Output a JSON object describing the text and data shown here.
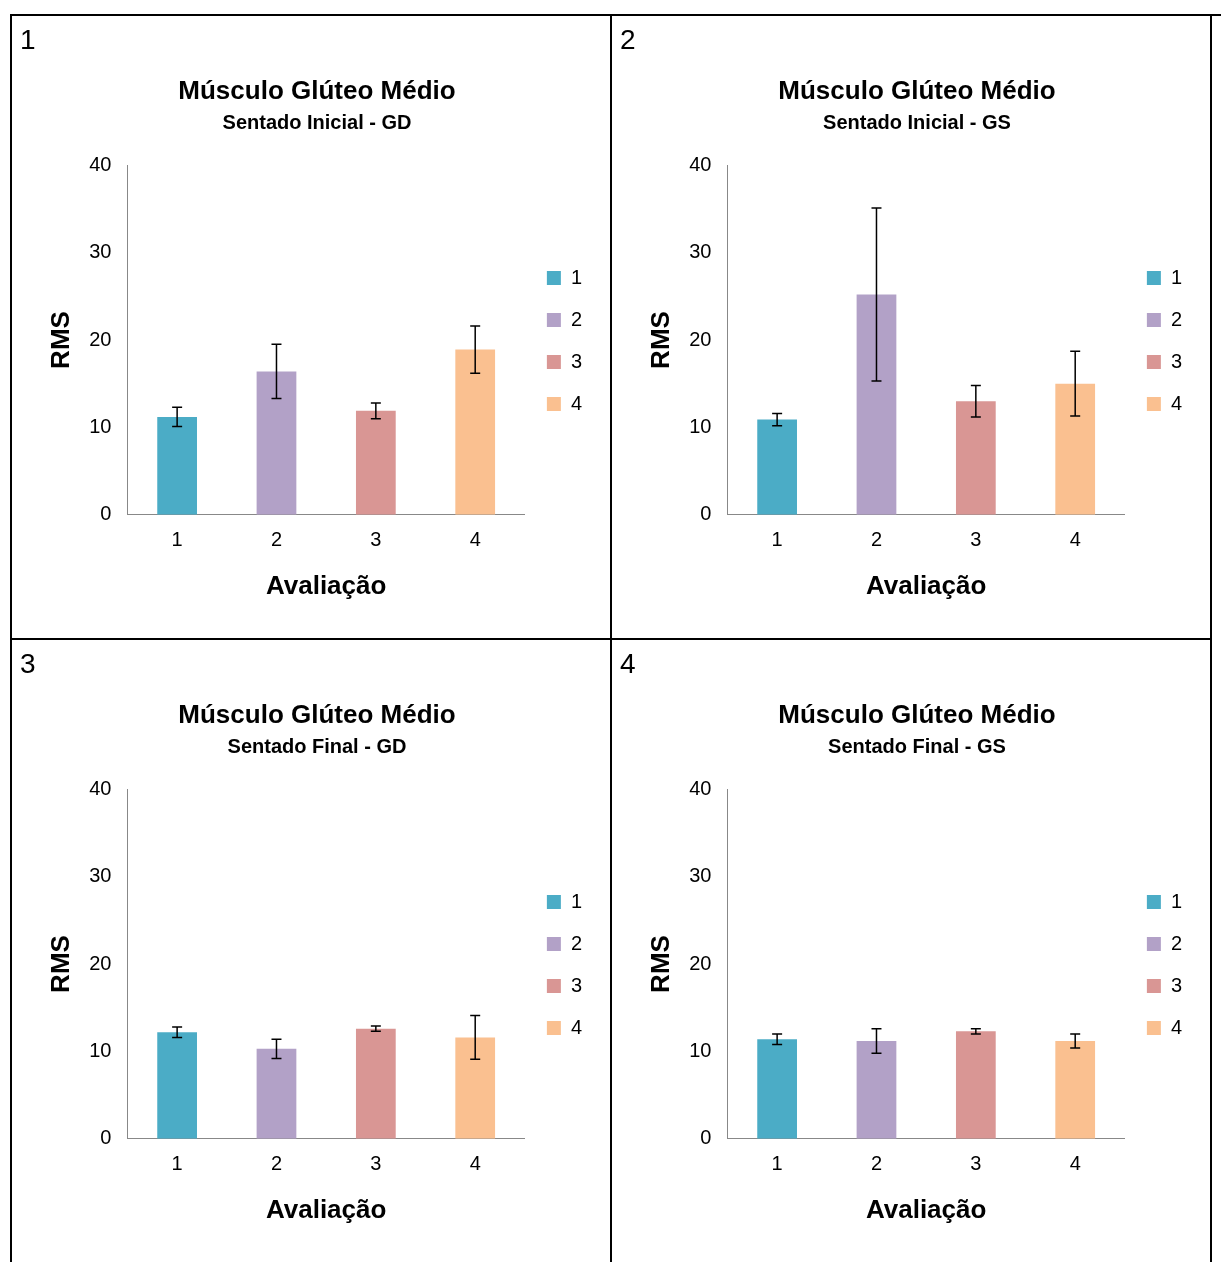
{
  "chart_data": [
    {
      "type": "bar",
      "title": "Músculo Glúteo Médio",
      "subtitle": "Sentado Inicial - GD",
      "xlabel": "Avaliação",
      "ylabel": "RMS",
      "annotations": [
        "1"
      ],
      "categories": [
        "1",
        "2",
        "3",
        "4"
      ],
      "ylim": [
        0,
        40
      ],
      "yticks": [
        0,
        10,
        20,
        30,
        40
      ],
      "legend": "right",
      "series": [
        {
          "name": "1",
          "color": "#4bacc6",
          "values": [
            11.2,
            null,
            null,
            null
          ],
          "errors": [
            1.1,
            null,
            null,
            null
          ]
        },
        {
          "name": "2",
          "color": "#b2a1c7",
          "values": [
            null,
            16.4,
            null,
            null
          ],
          "errors": [
            null,
            3.1,
            null,
            null
          ]
        },
        {
          "name": "3",
          "color": "#d99694",
          "values": [
            null,
            null,
            11.9,
            null
          ],
          "errors": [
            null,
            null,
            0.9,
            null
          ]
        },
        {
          "name": "4",
          "color": "#fac090",
          "values": [
            null,
            null,
            null,
            18.9
          ],
          "errors": [
            null,
            null,
            null,
            2.7
          ]
        }
      ]
    },
    {
      "type": "bar",
      "title": "Músculo Glúteo Médio",
      "subtitle": "Sentado Inicial - GS",
      "xlabel": "Avaliação",
      "ylabel": "RMS",
      "annotations": [
        "2"
      ],
      "categories": [
        "1",
        "2",
        "3",
        "4"
      ],
      "ylim": [
        0,
        40
      ],
      "yticks": [
        0,
        10,
        20,
        30,
        40
      ],
      "legend": "right",
      "series": [
        {
          "name": "1",
          "color": "#4bacc6",
          "values": [
            10.9,
            null,
            null,
            null
          ],
          "errors": [
            0.7,
            null,
            null,
            null
          ]
        },
        {
          "name": "2",
          "color": "#b2a1c7",
          "values": [
            null,
            25.2,
            null,
            null
          ],
          "errors": [
            null,
            9.9,
            null,
            null
          ]
        },
        {
          "name": "3",
          "color": "#d99694",
          "values": [
            null,
            null,
            13.0,
            null
          ],
          "errors": [
            null,
            null,
            1.8,
            null
          ]
        },
        {
          "name": "4",
          "color": "#fac090",
          "values": [
            null,
            null,
            null,
            15.0
          ],
          "errors": [
            null,
            null,
            null,
            3.7
          ]
        }
      ]
    },
    {
      "type": "bar",
      "title": "Músculo Glúteo Médio",
      "subtitle": "Sentado Final - GD",
      "xlabel": "Avaliação",
      "ylabel": "RMS",
      "annotations": [
        "3"
      ],
      "categories": [
        "1",
        "2",
        "3",
        "4"
      ],
      "ylim": [
        0,
        40
      ],
      "yticks": [
        0,
        10,
        20,
        30,
        40
      ],
      "legend": "right",
      "series": [
        {
          "name": "1",
          "color": "#4bacc6",
          "values": [
            12.2,
            null,
            null,
            null
          ],
          "errors": [
            0.6,
            null,
            null,
            null
          ]
        },
        {
          "name": "2",
          "color": "#b2a1c7",
          "values": [
            null,
            10.3,
            null,
            null
          ],
          "errors": [
            null,
            1.1,
            null,
            null
          ]
        },
        {
          "name": "3",
          "color": "#d99694",
          "values": [
            null,
            null,
            12.6,
            null
          ],
          "errors": [
            null,
            null,
            0.3,
            null
          ]
        },
        {
          "name": "4",
          "color": "#fac090",
          "values": [
            null,
            null,
            null,
            11.6
          ],
          "errors": [
            null,
            null,
            null,
            2.5
          ]
        }
      ]
    },
    {
      "type": "bar",
      "title": "Músculo Glúteo Médio",
      "subtitle": "Sentado Final - GS",
      "xlabel": "Avaliação",
      "ylabel": "RMS",
      "annotations": [
        "4"
      ],
      "categories": [
        "1",
        "2",
        "3",
        "4"
      ],
      "ylim": [
        0,
        40
      ],
      "yticks": [
        0,
        10,
        20,
        30,
        40
      ],
      "legend": "right",
      "series": [
        {
          "name": "1",
          "color": "#4bacc6",
          "values": [
            11.4,
            null,
            null,
            null
          ],
          "errors": [
            0.6,
            null,
            null,
            null
          ]
        },
        {
          "name": "2",
          "color": "#b2a1c7",
          "values": [
            null,
            11.2,
            null,
            null
          ],
          "errors": [
            null,
            1.4,
            null,
            null
          ]
        },
        {
          "name": "3",
          "color": "#d99694",
          "values": [
            null,
            null,
            12.3,
            null
          ],
          "errors": [
            null,
            null,
            0.3,
            null
          ]
        },
        {
          "name": "4",
          "color": "#fac090",
          "values": [
            null,
            null,
            null,
            11.2
          ],
          "errors": [
            null,
            null,
            null,
            0.8
          ]
        }
      ]
    }
  ]
}
